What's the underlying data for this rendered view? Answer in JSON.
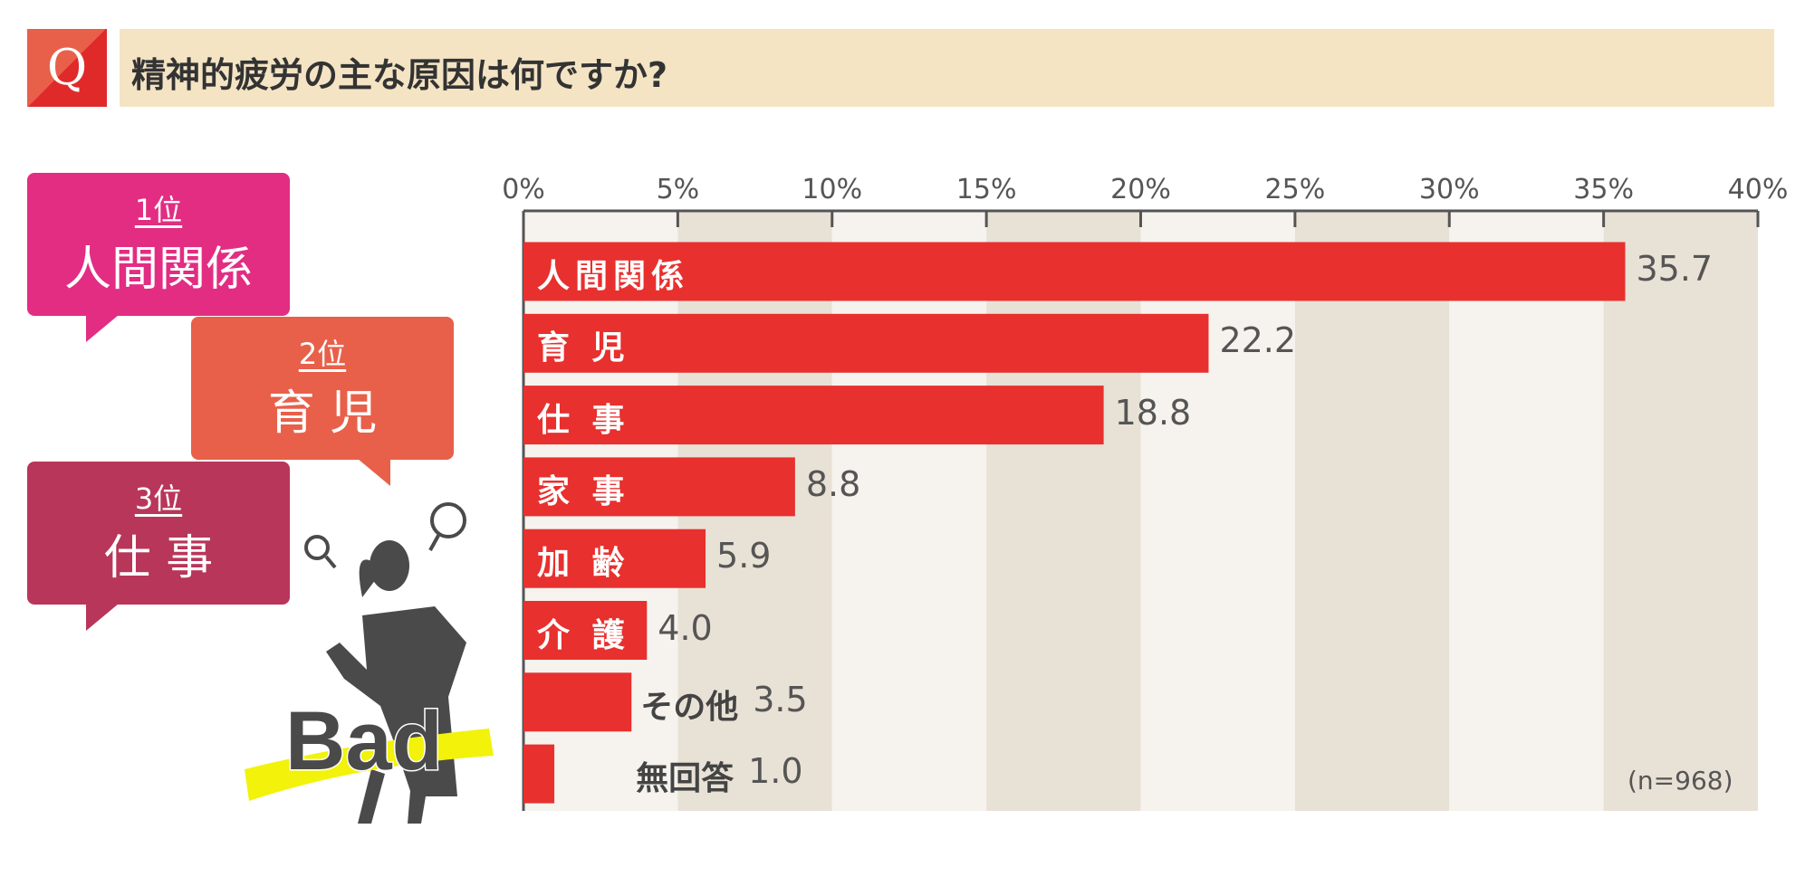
{
  "header": {
    "q_label": "Q",
    "title": "精神的疲労の主な原因は何ですか?"
  },
  "ranking": [
    {
      "rank": "1位",
      "name": "人間関係",
      "color": "#e22d83"
    },
    {
      "rank": "2位",
      "name": "育 児",
      "color": "#e8604a"
    },
    {
      "rank": "3位",
      "name": "仕 事",
      "color": "#b8365a"
    }
  ],
  "illustration": {
    "text": "Bad"
  },
  "chart_data": {
    "type": "bar",
    "orientation": "horizontal",
    "categories": [
      "人間関係",
      "育 児",
      "仕 事",
      "家 事",
      "加 齢",
      "介 護",
      "その他",
      "無回答"
    ],
    "values": [
      35.7,
      22.2,
      18.8,
      8.8,
      5.9,
      4.0,
      3.5,
      1.0
    ],
    "value_labels": [
      "35.7",
      "22.2",
      "18.8",
      "8.8",
      "5.9",
      "4.0",
      "3.5",
      "1.0"
    ],
    "xlim": [
      0,
      40
    ],
    "xticks": [
      "0%",
      "5%",
      "10%",
      "15%",
      "20%",
      "25%",
      "30%",
      "35%",
      "40%"
    ],
    "note": "(n=968)",
    "bar_color": "#e8302e",
    "stripe_colors": [
      "#f6f3ee",
      "#e8e1d5"
    ]
  }
}
